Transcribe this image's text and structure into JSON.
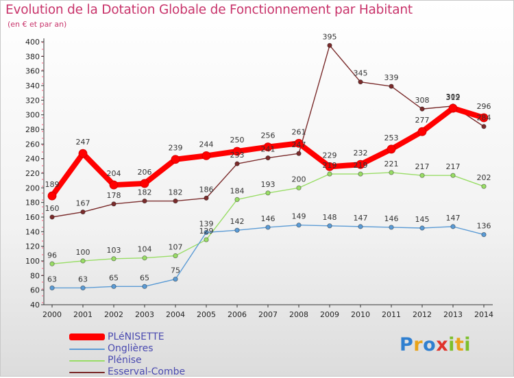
{
  "title": "Evolution de la Dotation Globale de Fonctionnement par Habitant",
  "subtitle": "(en € et par an)",
  "logo": {
    "text": "Proxiti",
    "letters": [
      "P",
      "r",
      "o",
      "x",
      "i",
      "t",
      "i"
    ]
  },
  "chart_data": {
    "type": "line",
    "title": "Evolution de la Dotation Globale de Fonctionnement par Habitant",
    "ylabel": "(en € et par an)",
    "xlabel": "",
    "x": [
      "2000",
      "2001",
      "2002",
      "2003",
      "2004",
      "2005",
      "2006",
      "2007",
      "2008",
      "2009",
      "2010",
      "2011",
      "2012",
      "2013",
      "2014"
    ],
    "ylim": [
      40,
      400
    ],
    "yticks": [
      40,
      60,
      80,
      100,
      120,
      140,
      160,
      180,
      200,
      220,
      240,
      260,
      280,
      300,
      320,
      340,
      360,
      380,
      400
    ],
    "grid": false,
    "legend_position": "bottom-left",
    "series": [
      {
        "name": "PLéNISETTE",
        "color": "#ff0000",
        "values": [
          189,
          247,
          204,
          206,
          239,
          244,
          250,
          256,
          261,
          229,
          232,
          253,
          277,
          309,
          296
        ]
      },
      {
        "name": "Onglières",
        "color": "#5b9bd5",
        "values": [
          63,
          63,
          65,
          65,
          75,
          139,
          142,
          146,
          149,
          148,
          147,
          146,
          145,
          147,
          136
        ]
      },
      {
        "name": "Plénise",
        "color": "#99dd66",
        "values": [
          96,
          100,
          103,
          104,
          107,
          129,
          184,
          193,
          200,
          219,
          219,
          221,
          217,
          217,
          202
        ]
      },
      {
        "name": "Esserval-Combe",
        "color": "#7a2b2b",
        "values": [
          160,
          167,
          178,
          182,
          182,
          186,
          233,
          241,
          247,
          395,
          345,
          339,
          308,
          312,
          284
        ]
      }
    ]
  }
}
